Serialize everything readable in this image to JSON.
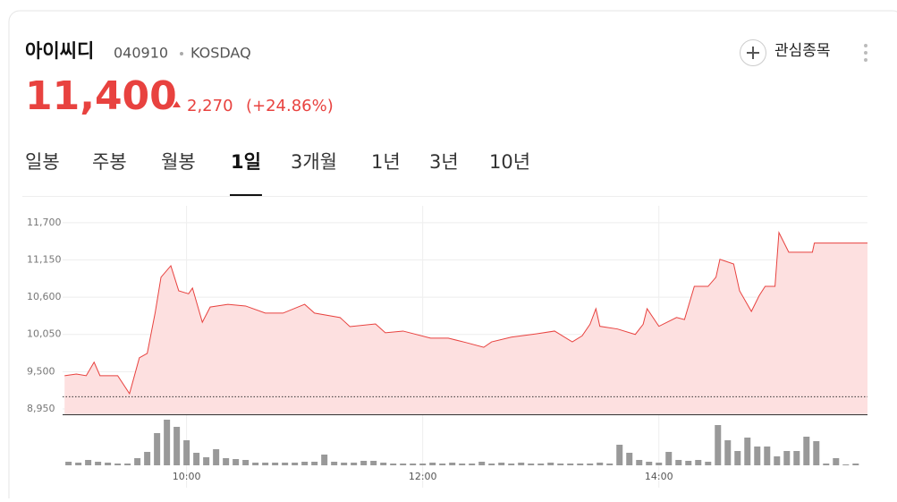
{
  "header": {
    "name": "아이씨디",
    "code": "040910",
    "market": "KOSDAQ",
    "price": "11,400",
    "change": "2,270",
    "change_pct": "(+24.86%)",
    "watch": "관심종목"
  },
  "tabs": [
    "일봉",
    "주봉",
    "월봉",
    "1일",
    "3개월",
    "1년",
    "3년",
    "10년"
  ],
  "active_tab": 3,
  "chart_data": {
    "type": "line",
    "color": "#e8423f",
    "fill": "#fde0e0",
    "x": [
      538,
      544,
      549,
      553,
      556,
      565,
      571,
      576,
      580,
      584,
      587,
      592,
      596,
      601,
      603,
      608,
      612,
      621,
      630,
      640,
      649,
      660,
      665,
      678,
      683,
      696,
      701,
      710,
      724,
      733,
      742,
      751,
      755,
      765,
      778,
      787,
      796,
      801,
      805,
      808,
      810,
      819,
      828,
      832,
      834,
      840,
      849,
      853,
      858,
      865,
      869,
      871,
      878,
      881,
      887,
      891,
      894,
      899,
      901,
      906,
      918,
      919,
      946
    ],
    "values": [
      9440,
      9465,
      9440,
      9640,
      9440,
      9440,
      9175,
      9705,
      9770,
      10365,
      10895,
      11065,
      10695,
      10650,
      10735,
      10230,
      10455,
      10495,
      10470,
      10365,
      10365,
      10495,
      10365,
      10300,
      10165,
      10205,
      10075,
      10100,
      9995,
      9995,
      9930,
      9860,
      9940,
      10010,
      10060,
      10100,
      9940,
      10030,
      10200,
      10430,
      10170,
      10130,
      10050,
      10200,
      10430,
      10170,
      10300,
      10270,
      10760,
      10760,
      10895,
      11160,
      11090,
      10695,
      10390,
      10625,
      10760,
      10760,
      11555,
      11265,
      11265,
      11400,
      11400
    ],
    "reference": 9130,
    "xlim": [
      537,
      946
    ],
    "xticks": [
      {
        "value": 600,
        "label": "10:00"
      },
      {
        "value": 720,
        "label": "12:00"
      },
      {
        "value": 840,
        "label": "14:00"
      }
    ],
    "ylim": [
      8870,
      11950
    ],
    "yticks": [
      {
        "value": 11700,
        "label": "11,700"
      },
      {
        "value": 11150,
        "label": "11,150"
      },
      {
        "value": 10600,
        "label": "10,600"
      },
      {
        "value": 10050,
        "label": "10,050"
      },
      {
        "value": 9500,
        "label": "9,500"
      },
      {
        "value": 8950,
        "label": "8,950"
      }
    ],
    "grid": true,
    "volume": {
      "color": "#999999",
      "x": [
        540,
        545,
        550,
        555,
        560,
        565,
        570,
        575,
        580,
        585,
        590,
        595,
        600,
        605,
        610,
        615,
        620,
        625,
        630,
        635,
        640,
        645,
        650,
        655,
        660,
        665,
        670,
        675,
        680,
        685,
        690,
        695,
        700,
        705,
        710,
        715,
        720,
        725,
        730,
        735,
        740,
        745,
        750,
        755,
        760,
        765,
        770,
        775,
        780,
        785,
        790,
        795,
        800,
        805,
        810,
        815,
        820,
        825,
        830,
        835,
        840,
        845,
        850,
        855,
        860,
        865,
        870,
        875,
        880,
        885,
        890,
        895,
        900,
        905,
        910,
        915,
        920,
        925,
        930,
        935,
        940
      ],
      "values": [
        4,
        3,
        6,
        4,
        3,
        2,
        2,
        8,
        15,
        36,
        51,
        43,
        28,
        14,
        9,
        18,
        8,
        7,
        6,
        3,
        3,
        3,
        3,
        3,
        4,
        4,
        12,
        4,
        3,
        3,
        5,
        5,
        3,
        2,
        2,
        2,
        2,
        3,
        2,
        3,
        2,
        2,
        4,
        2,
        3,
        2,
        3,
        2,
        2,
        3,
        2,
        2,
        2,
        2,
        3,
        2,
        23,
        14,
        6,
        4,
        3,
        15,
        6,
        5,
        6,
        4,
        45,
        28,
        16,
        31,
        21,
        21,
        10,
        16,
        16,
        32,
        27,
        2,
        8,
        1,
        2
      ],
      "vlim": [
        0,
        55
      ]
    }
  }
}
